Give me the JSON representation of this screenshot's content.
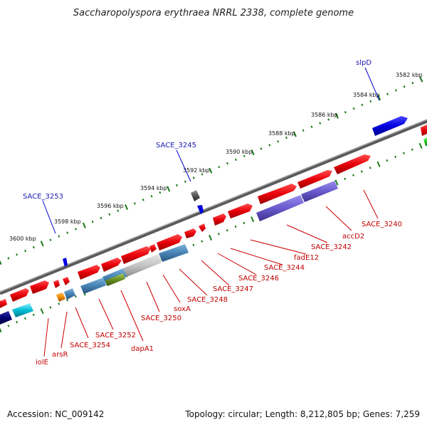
{
  "title": "Saccharopolyspora erythraea NRRL 2338, complete genome",
  "footer": {
    "accession": "Accession: NC_009142",
    "summary": "Topology: circular; Length: 8,212,805 bp; Genes: 7,259"
  },
  "ticks": [
    "3582 kbp",
    "3584 kbp",
    "3586 kbp",
    "3588 kbp",
    "3590 kbp",
    "3592 kbp",
    "3594 kbp",
    "3596 kbp",
    "3598 kbp",
    "3600 kbp"
  ],
  "top_labels": [
    "slpD",
    "SACE_3245",
    "SACE_3253"
  ],
  "bottom_labels": [
    "SACE_3240",
    "accD2",
    "SACE_3242",
    "fadE12",
    "SACE_3244",
    "SACE_3246",
    "SACE_3247",
    "SACE_3248",
    "soxA",
    "SACE_3250",
    "dapA1",
    "SACE_3252",
    "SACE_3254",
    "arsR",
    "iolE"
  ],
  "colors": {
    "forward_cds": "#e8000a",
    "oxidoreductase": "#6a5acd",
    "transport": "#4682b4",
    "slpD": "#0000e0",
    "tRNA": "#00bcd4",
    "backbone": "#7a7a7a",
    "ticks": "#1a7a1a"
  }
}
